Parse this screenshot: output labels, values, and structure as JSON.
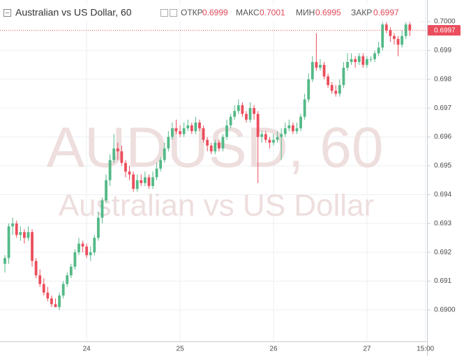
{
  "header": {
    "symbol": "Australian vs US Dollar, 60",
    "open_label": "ОТКР",
    "open": 0.6999,
    "high_label": "МАКС",
    "high": 0.7001,
    "low_label": "МИН",
    "low": 0.6995,
    "close_label": "ЗАКР",
    "close": 0.6997
  },
  "chart_data": {
    "type": "candlestick",
    "watermark": "AUDUSD, 60",
    "watermark_subtitle": "Australian vs US Dollar",
    "up_color": "#53b987",
    "down_color": "#eb4d5c",
    "grid": true,
    "last_price": 0.6997,
    "ylim": [
      0.68891,
      0.70075
    ],
    "yticks": [
      {
        "value": 0.69,
        "label": "0.6900"
      },
      0.691,
      0.692,
      0.693,
      0.694,
      0.695,
      0.696,
      0.697,
      0.698,
      0.699,
      {
        "value": 0.7,
        "label": "0.7000"
      }
    ],
    "categories": [
      null,
      null,
      null,
      null,
      null,
      null,
      null,
      null,
      null,
      null,
      null,
      null,
      null,
      null,
      null,
      null,
      null,
      null,
      null,
      null,
      null,
      "24",
      null,
      null,
      null,
      null,
      null,
      null,
      null,
      null,
      null,
      null,
      null,
      null,
      null,
      null,
      null,
      null,
      null,
      null,
      null,
      null,
      null,
      null,
      null,
      "25",
      null,
      null,
      null,
      null,
      null,
      null,
      null,
      null,
      null,
      null,
      null,
      null,
      null,
      null,
      null,
      null,
      null,
      null,
      null,
      null,
      null,
      null,
      null,
      "26",
      null,
      null,
      null,
      null,
      null,
      null,
      null,
      null,
      null,
      null,
      null,
      null,
      null,
      null,
      null,
      null,
      null,
      null,
      null,
      null,
      null,
      null,
      null,
      "27",
      null,
      null,
      null,
      null,
      null,
      null,
      null,
      null,
      null,
      null,
      null,
      null,
      null,
      null,
      "15:00"
    ],
    "ohlc": [
      [
        0.6916,
        0.6919,
        0.6913,
        0.6918
      ],
      [
        0.6918,
        0.693,
        0.6916,
        0.6929
      ],
      [
        0.6929,
        0.6932,
        0.6926,
        0.693
      ],
      [
        0.693,
        0.6931,
        0.6925,
        0.6926
      ],
      [
        0.6926,
        0.6929,
        0.6924,
        0.6927
      ],
      [
        0.6927,
        0.6928,
        0.6923,
        0.6925
      ],
      [
        0.6925,
        0.6929,
        0.6924,
        0.6927
      ],
      [
        0.6927,
        0.6928,
        0.6915,
        0.6917
      ],
      [
        0.6917,
        0.6918,
        0.6911,
        0.6912
      ],
      [
        0.6912,
        0.6914,
        0.6908,
        0.6909
      ],
      [
        0.6909,
        0.6911,
        0.6905,
        0.6906
      ],
      [
        0.6906,
        0.6908,
        0.6903,
        0.6904
      ],
      [
        0.6904,
        0.6905,
        0.6901,
        0.6902
      ],
      [
        0.6902,
        0.6904,
        0.6901,
        0.6901
      ],
      [
        0.6901,
        0.6906,
        0.69,
        0.6905
      ],
      [
        0.6905,
        0.691,
        0.6904,
        0.6909
      ],
      [
        0.6909,
        0.6913,
        0.6908,
        0.6912
      ],
      [
        0.6912,
        0.6916,
        0.6911,
        0.6915
      ],
      [
        0.6915,
        0.6921,
        0.6914,
        0.692
      ],
      [
        0.692,
        0.6925,
        0.6919,
        0.6923
      ],
      [
        0.6923,
        0.6924,
        0.692,
        0.6922
      ],
      [
        0.6922,
        0.6923,
        0.6918,
        0.6919
      ],
      [
        0.6919,
        0.6922,
        0.6917,
        0.692
      ],
      [
        0.692,
        0.6926,
        0.6919,
        0.6925
      ],
      [
        0.6925,
        0.6934,
        0.6924,
        0.6932
      ],
      [
        0.6932,
        0.6939,
        0.693,
        0.6938
      ],
      [
        0.6938,
        0.6947,
        0.6937,
        0.6945
      ],
      [
        0.6945,
        0.6954,
        0.6943,
        0.6952
      ],
      [
        0.6952,
        0.6961,
        0.6951,
        0.6956
      ],
      [
        0.6956,
        0.6958,
        0.6952,
        0.6955
      ],
      [
        0.6955,
        0.6957,
        0.695,
        0.6951
      ],
      [
        0.6951,
        0.6952,
        0.6946,
        0.6948
      ],
      [
        0.6948,
        0.695,
        0.6945,
        0.6947
      ],
      [
        0.6947,
        0.6948,
        0.6941,
        0.6942
      ],
      [
        0.6942,
        0.6947,
        0.6941,
        0.6945
      ],
      [
        0.6945,
        0.6947,
        0.6943,
        0.6944
      ],
      [
        0.6944,
        0.6948,
        0.6943,
        0.6946
      ],
      [
        0.6946,
        0.6947,
        0.6942,
        0.6943
      ],
      [
        0.6943,
        0.6948,
        0.6942,
        0.6946
      ],
      [
        0.6946,
        0.6951,
        0.6945,
        0.6949
      ],
      [
        0.6949,
        0.6953,
        0.6948,
        0.6952
      ],
      [
        0.6952,
        0.6958,
        0.6951,
        0.6956
      ],
      [
        0.6956,
        0.6962,
        0.6955,
        0.696
      ],
      [
        0.696,
        0.6965,
        0.6959,
        0.6963
      ],
      [
        0.6963,
        0.6966,
        0.6961,
        0.6962
      ],
      [
        0.6962,
        0.6964,
        0.696,
        0.6961
      ],
      [
        0.6961,
        0.6965,
        0.696,
        0.6963
      ],
      [
        0.6963,
        0.6966,
        0.6962,
        0.6964
      ],
      [
        0.6964,
        0.6965,
        0.6961,
        0.6962
      ],
      [
        0.6962,
        0.6967,
        0.6961,
        0.6965
      ],
      [
        0.6965,
        0.6966,
        0.6962,
        0.6963
      ],
      [
        0.6963,
        0.6964,
        0.6958,
        0.6959
      ],
      [
        0.6959,
        0.696,
        0.6955,
        0.6957
      ],
      [
        0.6957,
        0.6958,
        0.6954,
        0.6955
      ],
      [
        0.6955,
        0.6959,
        0.6954,
        0.6958
      ],
      [
        0.6958,
        0.6959,
        0.6955,
        0.6956
      ],
      [
        0.6956,
        0.6961,
        0.6955,
        0.696
      ],
      [
        0.696,
        0.6966,
        0.6959,
        0.6964
      ],
      [
        0.6964,
        0.6968,
        0.6963,
        0.6967
      ],
      [
        0.6967,
        0.6971,
        0.6966,
        0.6969
      ],
      [
        0.6969,
        0.6973,
        0.6968,
        0.6971
      ],
      [
        0.6971,
        0.6972,
        0.6967,
        0.6968
      ],
      [
        0.6968,
        0.6969,
        0.6965,
        0.6966
      ],
      [
        0.6966,
        0.6972,
        0.6965,
        0.697
      ],
      [
        0.697,
        0.6971,
        0.6966,
        0.6968
      ],
      [
        0.6968,
        0.6969,
        0.6944,
        0.696
      ],
      [
        0.696,
        0.6962,
        0.6958,
        0.6961
      ],
      [
        0.6961,
        0.6962,
        0.6958,
        0.6959
      ],
      [
        0.6959,
        0.696,
        0.6956,
        0.6958
      ],
      [
        0.6958,
        0.6961,
        0.6957,
        0.6959
      ],
      [
        0.6959,
        0.6962,
        0.6958,
        0.696
      ],
      [
        0.696,
        0.6963,
        0.6952,
        0.6961
      ],
      [
        0.6961,
        0.6965,
        0.696,
        0.6963
      ],
      [
        0.6963,
        0.6966,
        0.6962,
        0.6964
      ],
      [
        0.6964,
        0.6965,
        0.6961,
        0.6962
      ],
      [
        0.6962,
        0.6965,
        0.6961,
        0.6963
      ],
      [
        0.6963,
        0.6968,
        0.6962,
        0.6967
      ],
      [
        0.6967,
        0.6975,
        0.6966,
        0.6973
      ],
      [
        0.6973,
        0.6982,
        0.6972,
        0.698
      ],
      [
        0.698,
        0.6988,
        0.6979,
        0.6986
      ],
      [
        0.6986,
        0.6996,
        0.6983,
        0.6984
      ],
      [
        0.6984,
        0.6987,
        0.6983,
        0.6985
      ],
      [
        0.6985,
        0.6986,
        0.698,
        0.6981
      ],
      [
        0.6981,
        0.6982,
        0.6977,
        0.6978
      ],
      [
        0.6978,
        0.6979,
        0.6975,
        0.6976
      ],
      [
        0.6976,
        0.6978,
        0.6974,
        0.6975
      ],
      [
        0.6975,
        0.698,
        0.6974,
        0.6978
      ],
      [
        0.6978,
        0.6986,
        0.6977,
        0.6984
      ],
      [
        0.6984,
        0.6989,
        0.6983,
        0.6986
      ],
      [
        0.6986,
        0.6989,
        0.6985,
        0.6987
      ],
      [
        0.6987,
        0.6988,
        0.6984,
        0.6986
      ],
      [
        0.6986,
        0.6989,
        0.6985,
        0.6988
      ],
      [
        0.6988,
        0.6989,
        0.6984,
        0.6985
      ],
      [
        0.6985,
        0.6988,
        0.6984,
        0.6987
      ],
      [
        0.6987,
        0.6988,
        0.6986,
        0.6987
      ],
      [
        0.6987,
        0.699,
        0.6986,
        0.6989
      ],
      [
        0.6989,
        0.6993,
        0.6988,
        0.6991
      ],
      [
        0.6991,
        0.7001,
        0.699,
        0.6999
      ],
      [
        0.6999,
        0.7,
        0.6996,
        0.6997
      ],
      [
        0.6997,
        0.6998,
        0.6993,
        0.6995
      ],
      [
        0.6995,
        0.6996,
        0.6992,
        0.6994
      ],
      [
        0.6994,
        0.6995,
        0.6988,
        0.6992
      ],
      [
        0.6992,
        0.6997,
        0.6991,
        0.6995
      ],
      [
        0.6995,
        0.7,
        0.6994,
        0.6999
      ],
      [
        0.6999,
        0.7001,
        0.6995,
        0.6997
      ],
      null,
      null,
      null,
      null
    ]
  }
}
